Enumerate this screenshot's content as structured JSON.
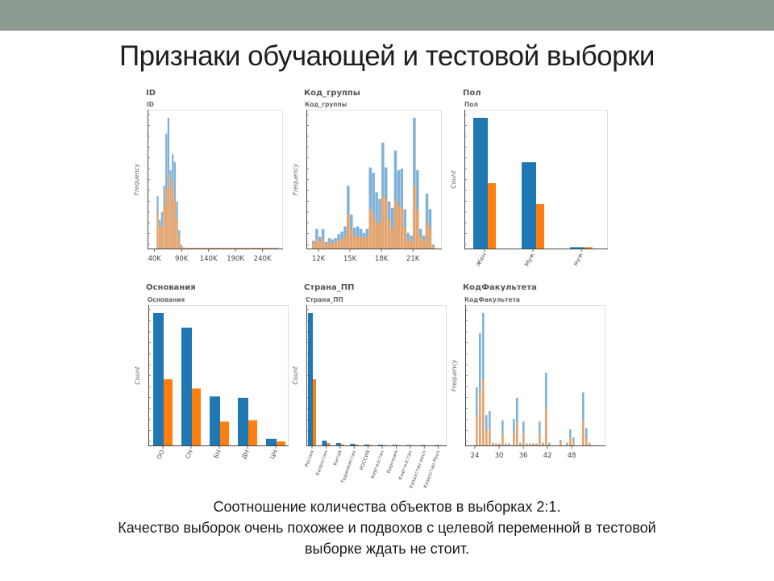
{
  "slide": {
    "title": "Признаки обучающей и тестовой выборки",
    "caption_lines": [
      "Соотношение количества объектов в выборках 2:1.",
      "Качество выборок очень похожее и подвохов с целевой переменной  в тестовой",
      "выборке ждать не стоит."
    ]
  },
  "colors": {
    "train": "#1f77b4",
    "test": "#ff7f0e",
    "train_hist": "#7fb2d9",
    "test_hist": "#e8a36a"
  },
  "chart_data": [
    {
      "id": "ID",
      "type": "histogram",
      "title": "ID",
      "subtitle": "ID",
      "ylabel": "Frequency",
      "xlim": [
        30000,
        275000
      ],
      "ylim": [
        0,
        100
      ],
      "xticks": [
        {
          "v": 40000,
          "label": "40K"
        },
        {
          "v": 90000,
          "label": "90K"
        },
        {
          "v": 140000,
          "label": "140K"
        },
        {
          "v": 190000,
          "label": "190K"
        },
        {
          "v": 240000,
          "label": "240K"
        }
      ],
      "bins": [
        {
          "x0": 44000,
          "x1": 48000,
          "train": 40,
          "test": 28
        },
        {
          "x0": 48000,
          "x1": 52000,
          "train": 22,
          "test": 17
        },
        {
          "x0": 52000,
          "x1": 56000,
          "train": 28,
          "test": 17
        },
        {
          "x0": 56000,
          "x1": 60000,
          "train": 48,
          "test": 32
        },
        {
          "x0": 60000,
          "x1": 64000,
          "train": 88,
          "test": 46
        },
        {
          "x0": 64000,
          "x1": 68000,
          "train": 100,
          "test": 57
        },
        {
          "x0": 68000,
          "x1": 72000,
          "train": 60,
          "test": 45
        },
        {
          "x0": 72000,
          "x1": 76000,
          "train": 72,
          "test": 52
        },
        {
          "x0": 76000,
          "x1": 80000,
          "train": 66,
          "test": 37
        },
        {
          "x0": 80000,
          "x1": 84000,
          "train": 36,
          "test": 22
        },
        {
          "x0": 84000,
          "x1": 88000,
          "train": 14,
          "test": 9
        },
        {
          "x0": 88000,
          "x1": 92000,
          "train": 3,
          "test": 2
        },
        {
          "x0": 92000,
          "x1": 96000,
          "train": 1,
          "test": 1
        },
        {
          "x0": 96000,
          "x1": 270000,
          "train": 0.6,
          "test": 0.6
        }
      ]
    },
    {
      "id": "kod",
      "type": "histogram",
      "title": "Код_группы",
      "subtitle": "Код_группы",
      "ylabel": "Frequency",
      "xlim": [
        11000,
        23600
      ],
      "ylim": [
        0,
        100
      ],
      "xticks": [
        {
          "v": 12000,
          "label": "12K"
        },
        {
          "v": 15000,
          "label": "15K"
        },
        {
          "v": 18000,
          "label": "18K"
        },
        {
          "v": 21000,
          "label": "21K"
        }
      ],
      "bins": [
        {
          "x0": 11400,
          "x1": 11700,
          "train": 6,
          "test": 4
        },
        {
          "x0": 11700,
          "x1": 12000,
          "train": 15,
          "test": 7
        },
        {
          "x0": 12000,
          "x1": 12300,
          "train": 9,
          "test": 5
        },
        {
          "x0": 12300,
          "x1": 12600,
          "train": 15,
          "test": 8
        },
        {
          "x0": 12600,
          "x1": 12900,
          "train": 5,
          "test": 3
        },
        {
          "x0": 12900,
          "x1": 13200,
          "train": 8,
          "test": 5
        },
        {
          "x0": 13200,
          "x1": 13500,
          "train": 7,
          "test": 4
        },
        {
          "x0": 13500,
          "x1": 13800,
          "train": 8,
          "test": 5
        },
        {
          "x0": 13800,
          "x1": 14100,
          "train": 11,
          "test": 6
        },
        {
          "x0": 14100,
          "x1": 14400,
          "train": 13,
          "test": 7
        },
        {
          "x0": 14400,
          "x1": 14700,
          "train": 17,
          "test": 10
        },
        {
          "x0": 14700,
          "x1": 15000,
          "train": 48,
          "test": 26
        },
        {
          "x0": 15000,
          "x1": 15300,
          "train": 26,
          "test": 15
        },
        {
          "x0": 15300,
          "x1": 15600,
          "train": 16,
          "test": 10
        },
        {
          "x0": 15600,
          "x1": 15900,
          "train": 17,
          "test": 9
        },
        {
          "x0": 15900,
          "x1": 16200,
          "train": 15,
          "test": 9
        },
        {
          "x0": 16200,
          "x1": 16500,
          "train": 12,
          "test": 8
        },
        {
          "x0": 16500,
          "x1": 16800,
          "train": 15,
          "test": 9
        },
        {
          "x0": 16800,
          "x1": 17100,
          "train": 62,
          "test": 30
        },
        {
          "x0": 17100,
          "x1": 17400,
          "train": 58,
          "test": 26
        },
        {
          "x0": 17400,
          "x1": 17700,
          "train": 43,
          "test": 20
        },
        {
          "x0": 17700,
          "x1": 18000,
          "train": 38,
          "test": 20
        },
        {
          "x0": 18000,
          "x1": 18300,
          "train": 81,
          "test": 40
        },
        {
          "x0": 18300,
          "x1": 18600,
          "train": 62,
          "test": 38
        },
        {
          "x0": 18600,
          "x1": 18900,
          "train": 36,
          "test": 22
        },
        {
          "x0": 18900,
          "x1": 19200,
          "train": 31,
          "test": 15
        },
        {
          "x0": 19200,
          "x1": 19500,
          "train": 75,
          "test": 37
        },
        {
          "x0": 19500,
          "x1": 19800,
          "train": 60,
          "test": 33
        },
        {
          "x0": 19800,
          "x1": 20100,
          "train": 61,
          "test": 31
        },
        {
          "x0": 20100,
          "x1": 20400,
          "train": 30,
          "test": 16
        },
        {
          "x0": 20400,
          "x1": 20700,
          "train": 12,
          "test": 7
        },
        {
          "x0": 20700,
          "x1": 21000,
          "train": 10,
          "test": 5
        },
        {
          "x0": 21000,
          "x1": 21300,
          "train": 100,
          "test": 48
        },
        {
          "x0": 21300,
          "x1": 21600,
          "train": 60,
          "test": 30
        },
        {
          "x0": 21600,
          "x1": 21900,
          "train": 15,
          "test": 9
        },
        {
          "x0": 21900,
          "x1": 22200,
          "train": 10,
          "test": 6
        },
        {
          "x0": 22200,
          "x1": 22500,
          "train": 42,
          "test": 20
        },
        {
          "x0": 22500,
          "x1": 22800,
          "train": 30,
          "test": 16
        },
        {
          "x0": 22800,
          "x1": 23100,
          "train": 3,
          "test": 2
        }
      ]
    },
    {
      "id": "pol",
      "type": "bar",
      "title": "Пол",
      "subtitle": "Пол",
      "ylabel": "Count",
      "ylim": [
        0,
        100
      ],
      "categories": [
        "Жен",
        "Муж",
        "муж"
      ],
      "series": [
        {
          "key": "train",
          "values": [
            100,
            66,
            1
          ]
        },
        {
          "key": "test",
          "values": [
            50,
            34,
            1
          ]
        }
      ]
    },
    {
      "id": "osn",
      "type": "bar",
      "title": "Основания",
      "subtitle": "Основания",
      "ylabel": "Count",
      "ylim": [
        0,
        100
      ],
      "categories": [
        "ОО",
        "СН",
        "БН",
        "ДН",
        "ЦН"
      ],
      "series": [
        {
          "key": "train",
          "values": [
            100,
            89,
            37,
            36,
            5
          ]
        },
        {
          "key": "test",
          "values": [
            50,
            43,
            18,
            19,
            3
          ]
        }
      ]
    },
    {
      "id": "strana",
      "type": "bar",
      "title": "Страна_ПП",
      "subtitle": "Страна_ПП",
      "ylabel": "Count",
      "ylim": [
        0,
        100
      ],
      "categories": [
        "Россия",
        "Казахстан",
        "Китай",
        "Таджикистан",
        "РОССИЯ",
        "Киргизстан",
        "Киргизия",
        "Кыргызстан",
        "Казахстан респ",
        "Казахстан Респ"
      ],
      "series": [
        {
          "key": "train",
          "values": [
            100,
            3.6,
            1.8,
            1.2,
            0.7,
            0.5,
            0.4,
            0.3,
            0.3,
            0.3
          ]
        },
        {
          "key": "test",
          "values": [
            50,
            1.8,
            0.9,
            0.6,
            0.4,
            0.3,
            0.2,
            0.2,
            0.2,
            0.2
          ]
        }
      ]
    },
    {
      "id": "fak",
      "type": "histogram",
      "title": "КодФакультета",
      "subtitle": "КодФакультета",
      "ylabel": "Frequency",
      "xlim": [
        22,
        56
      ],
      "ylim": [
        0,
        100
      ],
      "xticks": [
        {
          "v": 24,
          "label": "24"
        },
        {
          "v": 30,
          "label": "30"
        },
        {
          "v": 36,
          "label": "36"
        },
        {
          "v": 42,
          "label": "42"
        },
        {
          "v": 48,
          "label": "48"
        }
      ],
      "bins": [
        {
          "x0": 24.2,
          "x1": 24.8,
          "train": 44,
          "test": 22
        },
        {
          "x0": 25.0,
          "x1": 25.6,
          "train": 85,
          "test": 40
        },
        {
          "x0": 25.8,
          "x1": 26.4,
          "train": 100,
          "test": 50
        },
        {
          "x0": 26.6,
          "x1": 27.2,
          "train": 23,
          "test": 11
        },
        {
          "x0": 27.4,
          "x1": 28.0,
          "train": 26,
          "test": 13
        },
        {
          "x0": 28.2,
          "x1": 28.8,
          "train": 2,
          "test": 1
        },
        {
          "x0": 29.0,
          "x1": 29.6,
          "train": 1.5,
          "test": 1
        },
        {
          "x0": 29.8,
          "x1": 30.4,
          "train": 1.5,
          "test": 1
        },
        {
          "x0": 30.6,
          "x1": 31.2,
          "train": 19,
          "test": 9
        },
        {
          "x0": 31.4,
          "x1": 32.0,
          "train": 1.5,
          "test": 1
        },
        {
          "x0": 32.2,
          "x1": 32.8,
          "train": 1.5,
          "test": 1
        },
        {
          "x0": 33.4,
          "x1": 34.0,
          "train": 20,
          "test": 10
        },
        {
          "x0": 34.2,
          "x1": 34.8,
          "train": 36,
          "test": 17
        },
        {
          "x0": 35.0,
          "x1": 35.6,
          "train": 2,
          "test": 1
        },
        {
          "x0": 35.8,
          "x1": 36.4,
          "train": 18,
          "test": 9
        },
        {
          "x0": 36.6,
          "x1": 37.2,
          "train": 1.5,
          "test": 1
        },
        {
          "x0": 37.4,
          "x1": 38.0,
          "train": 1.5,
          "test": 1
        },
        {
          "x0": 38.2,
          "x1": 38.8,
          "train": 1.5,
          "test": 1
        },
        {
          "x0": 39.0,
          "x1": 39.6,
          "train": 1.5,
          "test": 1
        },
        {
          "x0": 39.8,
          "x1": 40.4,
          "train": 18,
          "test": 9
        },
        {
          "x0": 40.6,
          "x1": 41.2,
          "train": 2,
          "test": 1
        },
        {
          "x0": 41.4,
          "x1": 42.0,
          "train": 55,
          "test": 28
        },
        {
          "x0": 42.2,
          "x1": 42.8,
          "train": 2,
          "test": 1
        },
        {
          "x0": 45.0,
          "x1": 45.6,
          "train": 4,
          "test": 2
        },
        {
          "x0": 46.6,
          "x1": 47.2,
          "train": 2,
          "test": 1
        },
        {
          "x0": 47.4,
          "x1": 48.0,
          "train": 12,
          "test": 6
        },
        {
          "x0": 48.2,
          "x1": 48.8,
          "train": 6,
          "test": 3
        },
        {
          "x0": 50.6,
          "x1": 51.2,
          "train": 40,
          "test": 19
        },
        {
          "x0": 51.4,
          "x1": 52.0,
          "train": 13,
          "test": 6
        },
        {
          "x0": 52.2,
          "x1": 52.8,
          "train": 2,
          "test": 1
        }
      ]
    }
  ]
}
